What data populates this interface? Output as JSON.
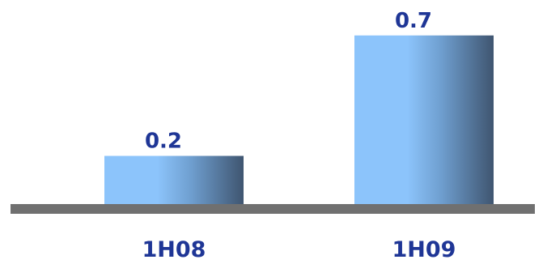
{
  "chart_data": {
    "type": "bar",
    "categories": [
      "1H08",
      "1H09"
    ],
    "values": [
      0.2,
      0.7
    ],
    "data_labels": [
      "0.2",
      "0.7"
    ],
    "ylim": [
      0,
      0.8
    ],
    "grid": false,
    "colors": {
      "bar_light": "#8cc4fb",
      "bar_mid": "#6f9fd0",
      "bar_dark": "#3f5570",
      "baseline": "#707070",
      "label": "#1f3696"
    }
  }
}
